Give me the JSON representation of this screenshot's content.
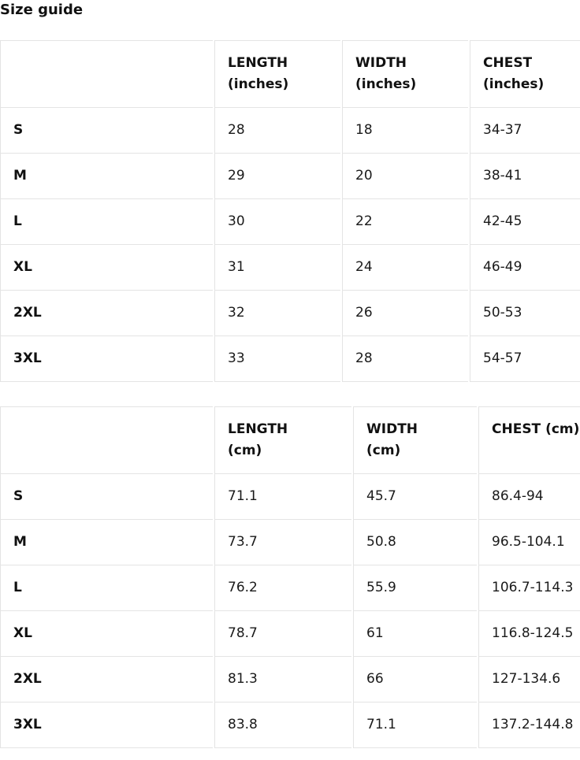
{
  "page": {
    "title": "Size guide"
  },
  "colors": {
    "border": "#e4e4e4",
    "text": "#1a1a1a"
  },
  "tables": [
    {
      "id": "inches",
      "headers": [
        "",
        "LENGTH\n(inches)",
        "WIDTH\n(inches)",
        "CHEST\n(inches)"
      ],
      "rows": [
        {
          "size": "S",
          "values": [
            "28",
            "18",
            "34-37"
          ]
        },
        {
          "size": "M",
          "values": [
            "29",
            "20",
            "38-41"
          ]
        },
        {
          "size": "L",
          "values": [
            "30",
            "22",
            "42-45"
          ]
        },
        {
          "size": "XL",
          "values": [
            "31",
            "24",
            "46-49"
          ]
        },
        {
          "size": "2XL",
          "values": [
            "32",
            "26",
            "50-53"
          ]
        },
        {
          "size": "3XL",
          "values": [
            "33",
            "28",
            "54-57"
          ]
        }
      ]
    },
    {
      "id": "cm",
      "headers": [
        "",
        "LENGTH\n(cm)",
        "WIDTH\n(cm)",
        "CHEST (cm)"
      ],
      "rows": [
        {
          "size": "S",
          "values": [
            "71.1",
            "45.7",
            "86.4-94"
          ]
        },
        {
          "size": "M",
          "values": [
            "73.7",
            "50.8",
            "96.5-104.1"
          ]
        },
        {
          "size": "L",
          "values": [
            "76.2",
            "55.9",
            "106.7-114.3"
          ]
        },
        {
          "size": "XL",
          "values": [
            "78.7",
            "61",
            "116.8-124.5"
          ]
        },
        {
          "size": "2XL",
          "values": [
            "81.3",
            "66",
            "127-134.6"
          ]
        },
        {
          "size": "3XL",
          "values": [
            "83.8",
            "71.1",
            "137.2-144.8"
          ]
        }
      ]
    }
  ]
}
